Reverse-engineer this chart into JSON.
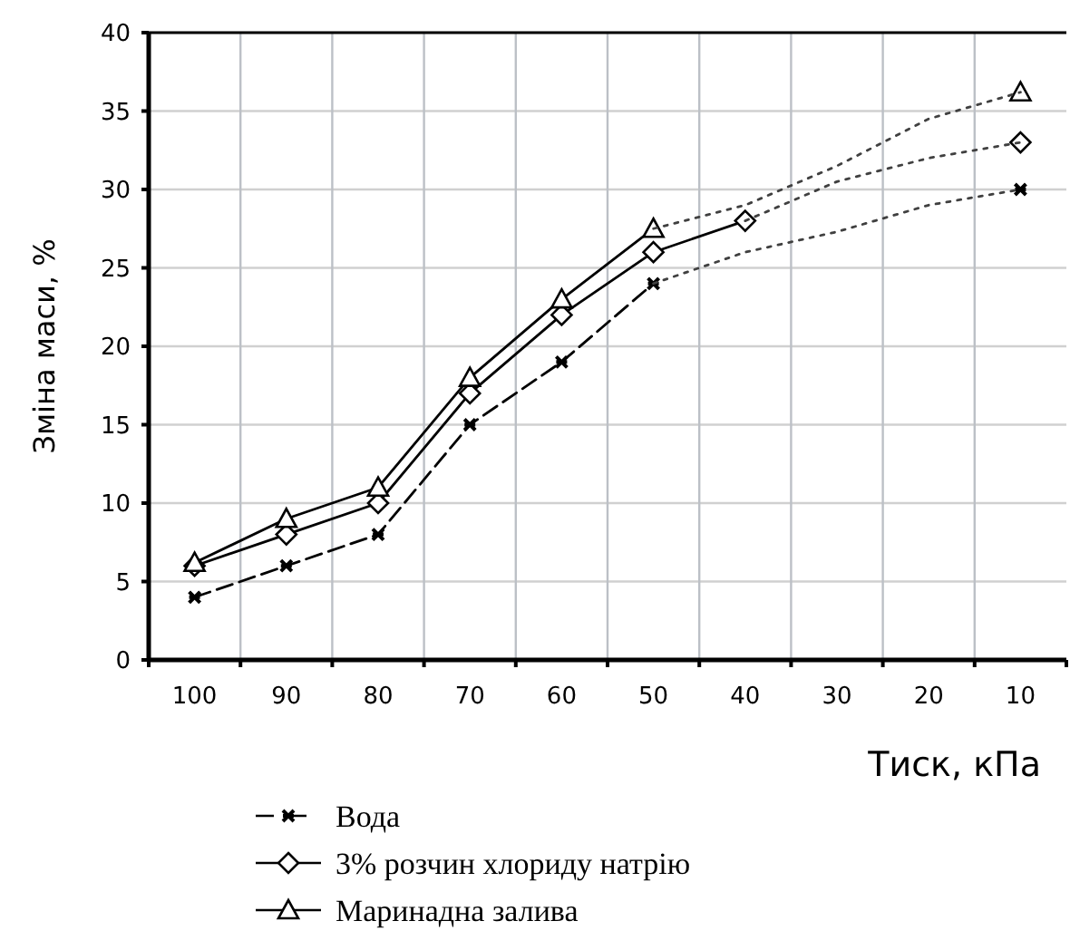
{
  "chart_data": {
    "type": "line",
    "xlabel": "Тиск, кПа",
    "ylabel": "Зміна маси, %",
    "categories": [
      "100",
      "90",
      "80",
      "70",
      "60",
      "50",
      "40",
      "30",
      "20",
      "10"
    ],
    "ylim": [
      0,
      40
    ],
    "yticks": [
      0,
      5,
      10,
      15,
      20,
      25,
      30,
      35,
      40
    ],
    "grid": true,
    "legend": "bottom",
    "series": [
      {
        "name": "Вода",
        "color": "#000000",
        "marker": "cross",
        "line_style": "dashed",
        "values": [
          4,
          6,
          8,
          15,
          19,
          24,
          null,
          null,
          null,
          30
        ]
      },
      {
        "name": "3% розчин хлориду натрію",
        "color": "#000000",
        "marker": "diamond",
        "line_style": "solid",
        "values": [
          6,
          8,
          10,
          17,
          22,
          26,
          28,
          null,
          null,
          33
        ]
      },
      {
        "name": "Маринадна залива",
        "color": "#000000",
        "marker": "triangle",
        "line_style": "solid",
        "values": [
          6.2,
          9,
          11,
          18,
          23,
          27.5,
          null,
          null,
          null,
          36.2
        ]
      },
      {
        "color": "#404040",
        "marker": "none",
        "line_style": "dotted",
        "values": [
          null,
          null,
          null,
          null,
          null,
          24,
          26,
          27.3,
          29,
          30
        ]
      },
      {
        "color": "#404040",
        "marker": "none",
        "line_style": "dotted",
        "values": [
          null,
          null,
          null,
          null,
          null,
          null,
          28,
          30.5,
          32,
          33
        ]
      },
      {
        "color": "#404040",
        "marker": "none",
        "line_style": "dotted",
        "values": [
          null,
          null,
          null,
          null,
          null,
          27.5,
          29,
          31.5,
          34.5,
          36.2
        ]
      }
    ]
  }
}
